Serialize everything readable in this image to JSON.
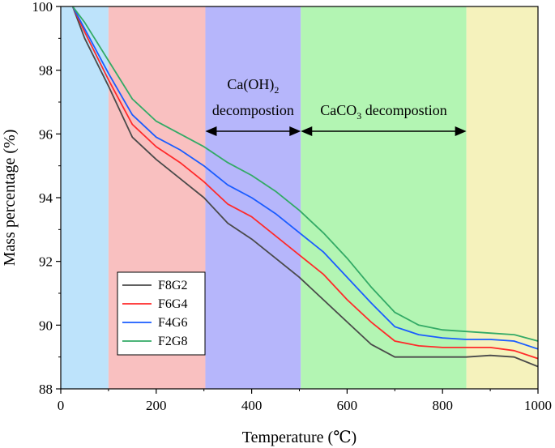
{
  "chart_data": {
    "type": "line",
    "title": "",
    "xlabel": "Temperature (℃)",
    "ylabel": "Mass percentage (%)",
    "xlim": [
      0,
      1000
    ],
    "ylim": [
      88,
      100
    ],
    "xticks": [
      "0",
      "200",
      "400",
      "600",
      "800",
      "1000"
    ],
    "yticks": [
      "88",
      "90",
      "92",
      "94",
      "96",
      "98",
      "100"
    ],
    "grid": false,
    "legend_position": "bottom-left",
    "regions": [
      {
        "from": 0,
        "to": 100,
        "color": "#bde3fb"
      },
      {
        "from": 100,
        "to": 303,
        "color": "#f9c0c0"
      },
      {
        "from": 303,
        "to": 503,
        "color": "#b6b6fb"
      },
      {
        "from": 503,
        "to": 850,
        "color": "#b3f5b3"
      },
      {
        "from": 850,
        "to": 1000,
        "color": "#f5f2bc"
      }
    ],
    "annotations": [
      {
        "main": "Ca(OH)",
        "sub": "2",
        "line2": "decompostion",
        "from": 303,
        "to": 503
      },
      {
        "main": "CaCO",
        "sub": "3",
        "rest": " decompostion",
        "from": 503,
        "to": 850
      }
    ],
    "x": [
      25,
      50,
      100,
      150,
      200,
      250,
      300,
      350,
      400,
      450,
      500,
      550,
      600,
      650,
      700,
      750,
      800,
      850,
      900,
      950,
      1000
    ],
    "series": [
      {
        "name": "F8G2",
        "color": "#4a4a4a",
        "values": [
          100,
          99.0,
          97.5,
          95.9,
          95.2,
          94.6,
          94.0,
          93.2,
          92.7,
          92.1,
          91.5,
          90.8,
          90.1,
          89.4,
          89.0,
          89.0,
          89.0,
          89.0,
          89.05,
          89.0,
          88.7
        ]
      },
      {
        "name": "F6G4",
        "color": "#ff2a2a",
        "values": [
          100,
          99.2,
          97.7,
          96.3,
          95.6,
          95.1,
          94.5,
          93.8,
          93.4,
          92.8,
          92.2,
          91.6,
          90.8,
          90.1,
          89.5,
          89.35,
          89.3,
          89.3,
          89.3,
          89.2,
          88.95
        ]
      },
      {
        "name": "F4G6",
        "color": "#1a5cff",
        "values": [
          100,
          99.3,
          97.9,
          96.6,
          95.9,
          95.5,
          95.0,
          94.4,
          94.0,
          93.5,
          92.9,
          92.3,
          91.5,
          90.7,
          89.95,
          89.7,
          89.6,
          89.55,
          89.55,
          89.5,
          89.25
        ]
      },
      {
        "name": "F2G8",
        "color": "#33aa66",
        "values": [
          100,
          99.5,
          98.3,
          97.1,
          96.4,
          96.0,
          95.6,
          95.1,
          94.7,
          94.2,
          93.6,
          92.9,
          92.1,
          91.2,
          90.4,
          90.0,
          89.85,
          89.8,
          89.75,
          89.7,
          89.5
        ]
      }
    ]
  }
}
